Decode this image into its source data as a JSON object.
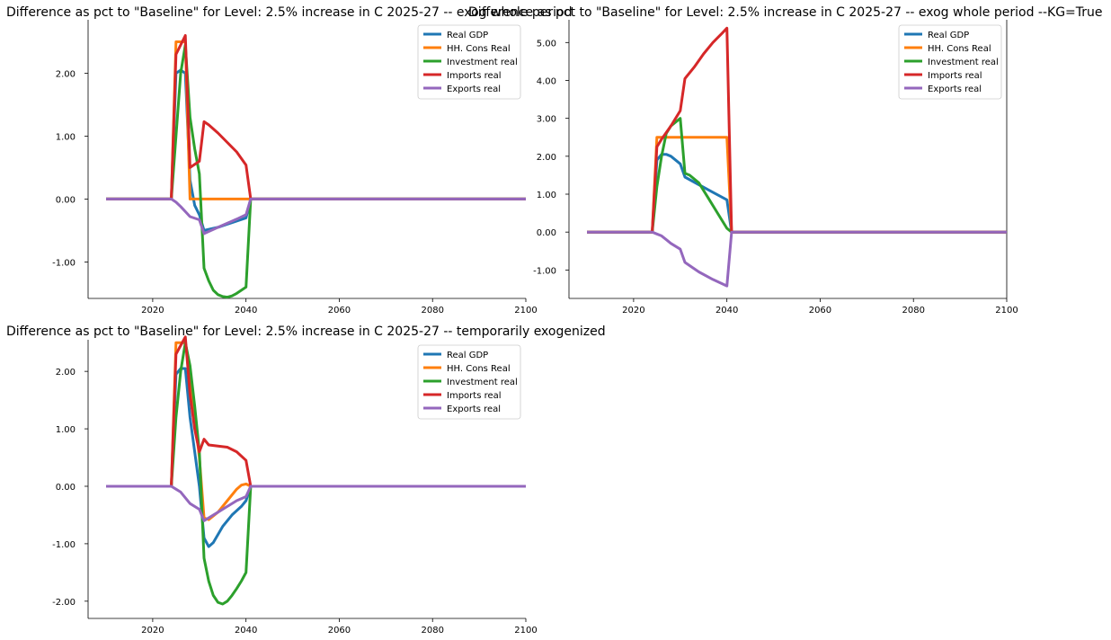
{
  "chart_data": [
    {
      "type": "line",
      "title": "Difference as pct to \"Baseline\" for Level: 2.5% increase in C 2025-27 -- exog whole period",
      "xlim": [
        2010,
        2100
      ],
      "ylim": [
        -1.58,
        2.85
      ],
      "xticks": [
        2020,
        2040,
        2060,
        2080,
        2100
      ],
      "yticks": [
        -1.0,
        0.0,
        1.0,
        2.0
      ],
      "ytick_labels": [
        "-1.00",
        "0.00",
        "1.00",
        "2.00"
      ],
      "legend": "top-right",
      "series": [
        {
          "name": "Real GDP",
          "color": "#1f77b4",
          "points": [
            [
              2010,
              0
            ],
            [
              2024,
              0
            ],
            [
              2025,
              2.0
            ],
            [
              2026,
              2.05
            ],
            [
              2027,
              2.0
            ],
            [
              2028,
              0.3
            ],
            [
              2029,
              -0.1
            ],
            [
              2030,
              -0.25
            ],
            [
              2031,
              -0.5
            ],
            [
              2034,
              -0.45
            ],
            [
              2040,
              -0.3
            ],
            [
              2041,
              0
            ],
            [
              2100,
              0
            ]
          ]
        },
        {
          "name": "HH. Cons Real",
          "color": "#ff7f0e",
          "points": [
            [
              2010,
              0
            ],
            [
              2024,
              0
            ],
            [
              2025,
              2.5
            ],
            [
              2027,
              2.5
            ],
            [
              2028,
              0
            ],
            [
              2100,
              0
            ]
          ]
        },
        {
          "name": "Investment real",
          "color": "#2ca02c",
          "points": [
            [
              2010,
              0
            ],
            [
              2024,
              0
            ],
            [
              2025,
              1.0
            ],
            [
              2026,
              2.0
            ],
            [
              2027,
              2.45
            ],
            [
              2028,
              1.3
            ],
            [
              2029,
              0.8
            ],
            [
              2030,
              0.4
            ],
            [
              2031,
              -1.1
            ],
            [
              2032,
              -1.3
            ],
            [
              2033,
              -1.45
            ],
            [
              2034,
              -1.52
            ],
            [
              2035,
              -1.55
            ],
            [
              2036,
              -1.56
            ],
            [
              2037,
              -1.54
            ],
            [
              2038,
              -1.5
            ],
            [
              2039,
              -1.45
            ],
            [
              2040,
              -1.4
            ],
            [
              2041,
              0
            ],
            [
              2100,
              0
            ]
          ]
        },
        {
          "name": "Imports real",
          "color": "#d62728",
          "points": [
            [
              2010,
              0
            ],
            [
              2024,
              0
            ],
            [
              2025,
              2.3
            ],
            [
              2026,
              2.45
            ],
            [
              2027,
              2.6
            ],
            [
              2028,
              0.5
            ],
            [
              2029,
              0.55
            ],
            [
              2030,
              0.6
            ],
            [
              2031,
              1.23
            ],
            [
              2032,
              1.18
            ],
            [
              2034,
              1.05
            ],
            [
              2036,
              0.9
            ],
            [
              2038,
              0.75
            ],
            [
              2040,
              0.54
            ],
            [
              2041,
              0
            ],
            [
              2100,
              0
            ]
          ]
        },
        {
          "name": "Exports real",
          "color": "#9467bd",
          "points": [
            [
              2010,
              0
            ],
            [
              2024,
              0
            ],
            [
              2025,
              -0.05
            ],
            [
              2026,
              -0.12
            ],
            [
              2027,
              -0.2
            ],
            [
              2028,
              -0.28
            ],
            [
              2030,
              -0.33
            ],
            [
              2031,
              -0.55
            ],
            [
              2034,
              -0.45
            ],
            [
              2038,
              -0.32
            ],
            [
              2040,
              -0.25
            ],
            [
              2041,
              0
            ],
            [
              2100,
              0
            ]
          ]
        }
      ]
    },
    {
      "type": "line",
      "title": "Difference as pct to \"Baseline\" for Level: 2.5% increase in C 2025-27 -- exog whole period --KG=True",
      "xlim": [
        2010,
        2100
      ],
      "ylim": [
        -1.75,
        5.6
      ],
      "xticks": [
        2020,
        2040,
        2060,
        2080,
        2100
      ],
      "yticks": [
        -1.0,
        0.0,
        1.0,
        2.0,
        3.0,
        4.0,
        5.0
      ],
      "ytick_labels": [
        "-1.00",
        "0.00",
        "1.00",
        "2.00",
        "3.00",
        "4.00",
        "5.00"
      ],
      "legend": "top-right",
      "series": [
        {
          "name": "Real GDP",
          "color": "#1f77b4",
          "points": [
            [
              2010,
              0
            ],
            [
              2024,
              0
            ],
            [
              2025,
              1.9
            ],
            [
              2026,
              2.05
            ],
            [
              2027,
              2.05
            ],
            [
              2028,
              2.0
            ],
            [
              2030,
              1.8
            ],
            [
              2031,
              1.45
            ],
            [
              2034,
              1.25
            ],
            [
              2037,
              1.05
            ],
            [
              2040,
              0.85
            ],
            [
              2041,
              0
            ],
            [
              2100,
              0
            ]
          ]
        },
        {
          "name": "HH. Cons Real",
          "color": "#ff7f0e",
          "points": [
            [
              2010,
              0
            ],
            [
              2024,
              0
            ],
            [
              2025,
              2.5
            ],
            [
              2040,
              2.5
            ],
            [
              2041,
              0
            ],
            [
              2100,
              0
            ]
          ]
        },
        {
          "name": "Investment real",
          "color": "#2ca02c",
          "points": [
            [
              2010,
              0
            ],
            [
              2024,
              0
            ],
            [
              2025,
              1.2
            ],
            [
              2026,
              2.0
            ],
            [
              2027,
              2.6
            ],
            [
              2028,
              2.8
            ],
            [
              2030,
              3.0
            ],
            [
              2031,
              1.55
            ],
            [
              2032,
              1.5
            ],
            [
              2034,
              1.3
            ],
            [
              2036,
              0.9
            ],
            [
              2038,
              0.5
            ],
            [
              2040,
              0.1
            ],
            [
              2041,
              0
            ],
            [
              2100,
              0
            ]
          ]
        },
        {
          "name": "Imports real",
          "color": "#d62728",
          "points": [
            [
              2010,
              0
            ],
            [
              2024,
              0
            ],
            [
              2025,
              2.25
            ],
            [
              2026,
              2.45
            ],
            [
              2028,
              2.8
            ],
            [
              2030,
              3.2
            ],
            [
              2031,
              4.05
            ],
            [
              2033,
              4.35
            ],
            [
              2035,
              4.7
            ],
            [
              2037,
              5.0
            ],
            [
              2039,
              5.25
            ],
            [
              2040,
              5.38
            ],
            [
              2041,
              0
            ],
            [
              2100,
              0
            ]
          ]
        },
        {
          "name": "Exports real",
          "color": "#9467bd",
          "points": [
            [
              2010,
              0
            ],
            [
              2024,
              0
            ],
            [
              2025,
              -0.05
            ],
            [
              2026,
              -0.1
            ],
            [
              2027,
              -0.2
            ],
            [
              2028,
              -0.3
            ],
            [
              2030,
              -0.45
            ],
            [
              2031,
              -0.8
            ],
            [
              2034,
              -1.05
            ],
            [
              2037,
              -1.25
            ],
            [
              2040,
              -1.42
            ],
            [
              2041,
              0
            ],
            [
              2100,
              0
            ]
          ]
        }
      ]
    },
    {
      "type": "line",
      "title": "Difference as pct to \"Baseline\" for Level: 2.5% increase in C 2025-27 -- temporarily exogenized",
      "xlim": [
        2010,
        2100
      ],
      "ylim": [
        -2.3,
        2.55
      ],
      "xticks": [
        2020,
        2040,
        2060,
        2080,
        2100
      ],
      "yticks": [
        -2.0,
        -1.0,
        0.0,
        1.0,
        2.0
      ],
      "ytick_labels": [
        "-2.00",
        "-1.00",
        "0.00",
        "1.00",
        "2.00"
      ],
      "legend": "top-right",
      "series": [
        {
          "name": "Real GDP",
          "color": "#1f77b4",
          "points": [
            [
              2010,
              0
            ],
            [
              2024,
              0
            ],
            [
              2025,
              1.95
            ],
            [
              2026,
              2.05
            ],
            [
              2027,
              2.05
            ],
            [
              2028,
              1.2
            ],
            [
              2029,
              0.6
            ],
            [
              2030,
              0
            ],
            [
              2031,
              -0.9
            ],
            [
              2032,
              -1.05
            ],
            [
              2033,
              -0.98
            ],
            [
              2035,
              -0.7
            ],
            [
              2037,
              -0.5
            ],
            [
              2039,
              -0.35
            ],
            [
              2040,
              -0.25
            ],
            [
              2041,
              0
            ],
            [
              2100,
              0
            ]
          ]
        },
        {
          "name": "HH. Cons Real",
          "color": "#ff7f0e",
          "points": [
            [
              2010,
              0
            ],
            [
              2024,
              0
            ],
            [
              2025,
              2.5
            ],
            [
              2027,
              2.5
            ],
            [
              2028,
              2.0
            ],
            [
              2029,
              1.2
            ],
            [
              2030,
              0.5
            ],
            [
              2031,
              -0.55
            ],
            [
              2032,
              -0.58
            ],
            [
              2034,
              -0.45
            ],
            [
              2036,
              -0.25
            ],
            [
              2038,
              -0.05
            ],
            [
              2039,
              0.02
            ],
            [
              2040,
              0.04
            ],
            [
              2041,
              0
            ],
            [
              2100,
              0
            ]
          ]
        },
        {
          "name": "Investment real",
          "color": "#2ca02c",
          "points": [
            [
              2010,
              0
            ],
            [
              2024,
              0
            ],
            [
              2025,
              1.2
            ],
            [
              2026,
              2.0
            ],
            [
              2027,
              2.5
            ],
            [
              2028,
              2.1
            ],
            [
              2029,
              1.4
            ],
            [
              2030,
              0.6
            ],
            [
              2031,
              -1.25
            ],
            [
              2032,
              -1.65
            ],
            [
              2033,
              -1.9
            ],
            [
              2034,
              -2.02
            ],
            [
              2035,
              -2.05
            ],
            [
              2036,
              -2.0
            ],
            [
              2037,
              -1.9
            ],
            [
              2038,
              -1.78
            ],
            [
              2039,
              -1.65
            ],
            [
              2040,
              -1.5
            ],
            [
              2041,
              0
            ],
            [
              2100,
              0
            ]
          ]
        },
        {
          "name": "Imports real",
          "color": "#d62728",
          "points": [
            [
              2010,
              0
            ],
            [
              2024,
              0
            ],
            [
              2025,
              2.3
            ],
            [
              2026,
              2.45
            ],
            [
              2027,
              2.6
            ],
            [
              2028,
              1.6
            ],
            [
              2029,
              1.0
            ],
            [
              2030,
              0.6
            ],
            [
              2031,
              0.82
            ],
            [
              2032,
              0.72
            ],
            [
              2034,
              0.7
            ],
            [
              2036,
              0.68
            ],
            [
              2038,
              0.6
            ],
            [
              2040,
              0.45
            ],
            [
              2041,
              0
            ],
            [
              2100,
              0
            ]
          ]
        },
        {
          "name": "Exports real",
          "color": "#9467bd",
          "points": [
            [
              2010,
              0
            ],
            [
              2024,
              0
            ],
            [
              2025,
              -0.05
            ],
            [
              2026,
              -0.1
            ],
            [
              2027,
              -0.2
            ],
            [
              2028,
              -0.3
            ],
            [
              2030,
              -0.4
            ],
            [
              2031,
              -0.6
            ],
            [
              2032,
              -0.55
            ],
            [
              2034,
              -0.45
            ],
            [
              2036,
              -0.35
            ],
            [
              2038,
              -0.25
            ],
            [
              2040,
              -0.18
            ],
            [
              2041,
              0
            ],
            [
              2100,
              0
            ]
          ]
        }
      ]
    }
  ]
}
